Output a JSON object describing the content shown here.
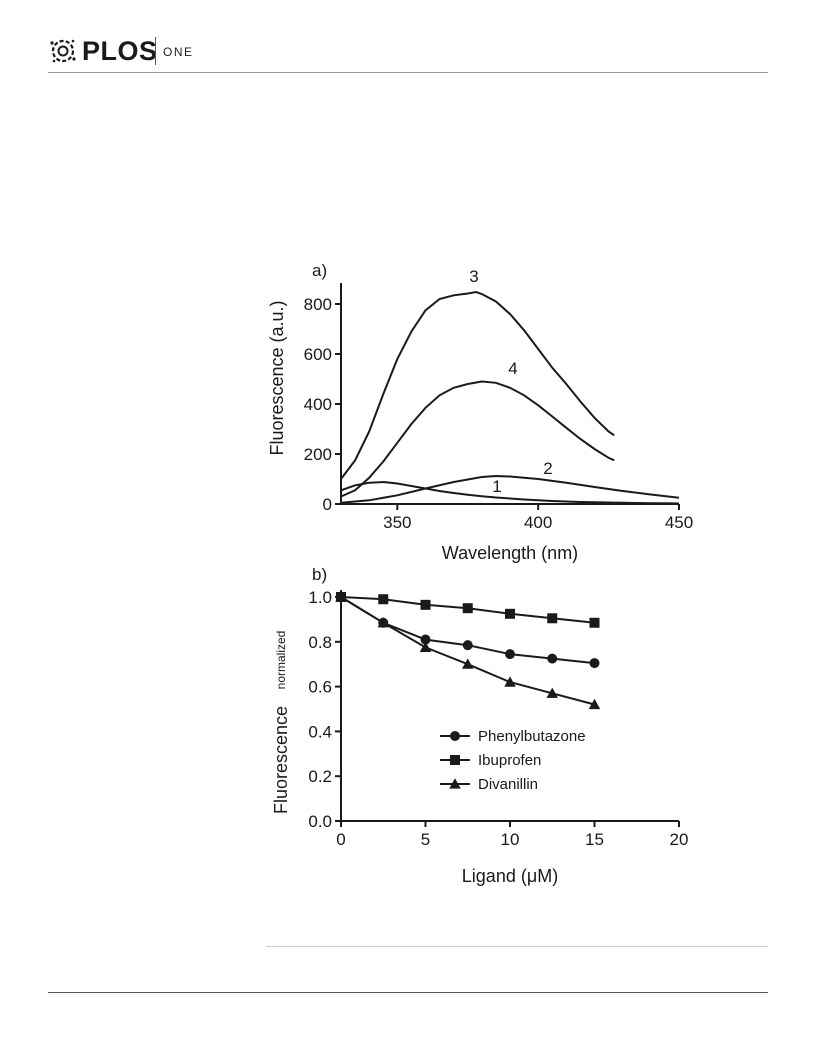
{
  "header": {
    "brand": "PLOS",
    "journal": "ONE"
  },
  "chart_data": [
    {
      "panel": "a)",
      "type": "line",
      "xlabel": "Wavelength (nm)",
      "ylabel": "Fluorescence (a.u.)",
      "xlim": [
        330,
        450
      ],
      "ylim": [
        0,
        850
      ],
      "xticks": [
        350,
        400,
        450
      ],
      "yticks": [
        0,
        200,
        400,
        600,
        800
      ],
      "grid": false,
      "series": [
        {
          "name": "1",
          "x": [
            330,
            335,
            340,
            345,
            350,
            355,
            360,
            365,
            370,
            375,
            380,
            385,
            390,
            395,
            400,
            405,
            410,
            415,
            420,
            425,
            430,
            435,
            440,
            445,
            450
          ],
          "y": [
            55,
            75,
            85,
            88,
            82,
            72,
            62,
            52,
            44,
            37,
            31,
            26,
            22,
            18,
            15,
            12,
            10,
            8,
            7,
            6,
            5,
            4,
            3,
            3,
            2
          ]
        },
        {
          "name": "2",
          "x": [
            330,
            340,
            350,
            360,
            370,
            380,
            385,
            390,
            400,
            410,
            420,
            430,
            440,
            450
          ],
          "y": [
            5,
            15,
            35,
            62,
            88,
            108,
            112,
            110,
            100,
            85,
            68,
            52,
            38,
            25
          ]
        },
        {
          "name": "3",
          "x": [
            330,
            335,
            340,
            345,
            350,
            355,
            360,
            365,
            370,
            375,
            378,
            380,
            385,
            390,
            395,
            400,
            405,
            410,
            415,
            420,
            425,
            427
          ],
          "y": [
            100,
            175,
            290,
            440,
            580,
            690,
            775,
            820,
            835,
            842,
            848,
            840,
            810,
            760,
            695,
            620,
            545,
            480,
            410,
            345,
            290,
            275
          ]
        },
        {
          "name": "4",
          "x": [
            330,
            335,
            340,
            345,
            350,
            355,
            360,
            365,
            370,
            375,
            380,
            385,
            390,
            395,
            400,
            405,
            410,
            415,
            420,
            425,
            427
          ],
          "y": [
            30,
            55,
            105,
            170,
            245,
            320,
            385,
            435,
            465,
            480,
            490,
            485,
            465,
            435,
            395,
            350,
            305,
            260,
            220,
            185,
            175
          ]
        }
      ]
    },
    {
      "panel": "b)",
      "type": "line",
      "xlabel": "Ligand (μM)",
      "ylabel": "Fluorescence",
      "ylabel_sub": "normalized",
      "xlim": [
        0,
        20
      ],
      "ylim": [
        0,
        1.0
      ],
      "xticks": [
        0,
        5,
        10,
        15,
        20
      ],
      "yticks": [
        0.0,
        0.2,
        0.4,
        0.6,
        0.8,
        1.0
      ],
      "grid": false,
      "legend_position": "bottom-right",
      "series": [
        {
          "name": "Phenylbutazone",
          "marker": "circle",
          "x": [
            0,
            2.5,
            5,
            7.5,
            10,
            12.5,
            15
          ],
          "y": [
            1.0,
            0.885,
            0.81,
            0.785,
            0.745,
            0.725,
            0.705
          ]
        },
        {
          "name": "Ibuprofen",
          "marker": "square",
          "x": [
            0,
            2.5,
            5,
            7.5,
            10,
            12.5,
            15
          ],
          "y": [
            1.0,
            0.99,
            0.965,
            0.95,
            0.925,
            0.905,
            0.885
          ]
        },
        {
          "name": "Divanillin",
          "marker": "triangle",
          "x": [
            0,
            2.5,
            5,
            7.5,
            10,
            12.5,
            15
          ],
          "y": [
            1.0,
            0.885,
            0.775,
            0.7,
            0.62,
            0.57,
            0.52
          ]
        }
      ]
    }
  ]
}
